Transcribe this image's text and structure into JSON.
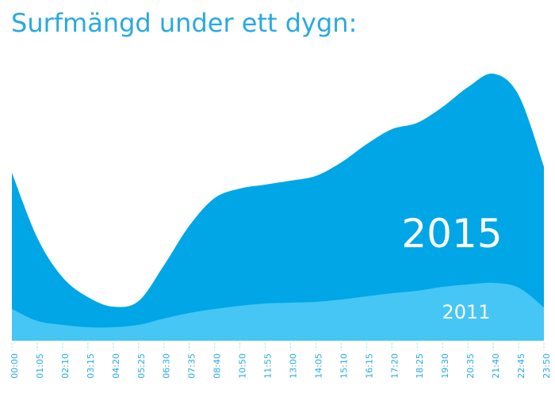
{
  "chart_data": {
    "type": "area",
    "title": "Surfmängd under ett dygn:",
    "categories": [
      "00:00",
      "01:05",
      "02:10",
      "03:15",
      "04:20",
      "05:25",
      "06:30",
      "07:35",
      "08:40",
      "10:50",
      "11:55",
      "13:00",
      "14:05",
      "15:10",
      "16:15",
      "17:20",
      "18:25",
      "19:30",
      "20:35",
      "21:40",
      "22:45",
      "23:50"
    ],
    "series": [
      {
        "name": "2015",
        "color": "#00a6e6",
        "values": [
          212,
          130,
          80,
          55,
          43,
          50,
          95,
          145,
          180,
          192,
          197,
          202,
          208,
          225,
          248,
          267,
          275,
          295,
          320,
          337,
          310,
          220
        ]
      },
      {
        "name": "2011",
        "color": "#45c6f4",
        "values": [
          40,
          25,
          20,
          17,
          17,
          20,
          28,
          35,
          40,
          44,
          47,
          48,
          49,
          52,
          56,
          60,
          63,
          68,
          71,
          73,
          67,
          42
        ]
      }
    ],
    "ylim": [
      0,
      345
    ]
  }
}
